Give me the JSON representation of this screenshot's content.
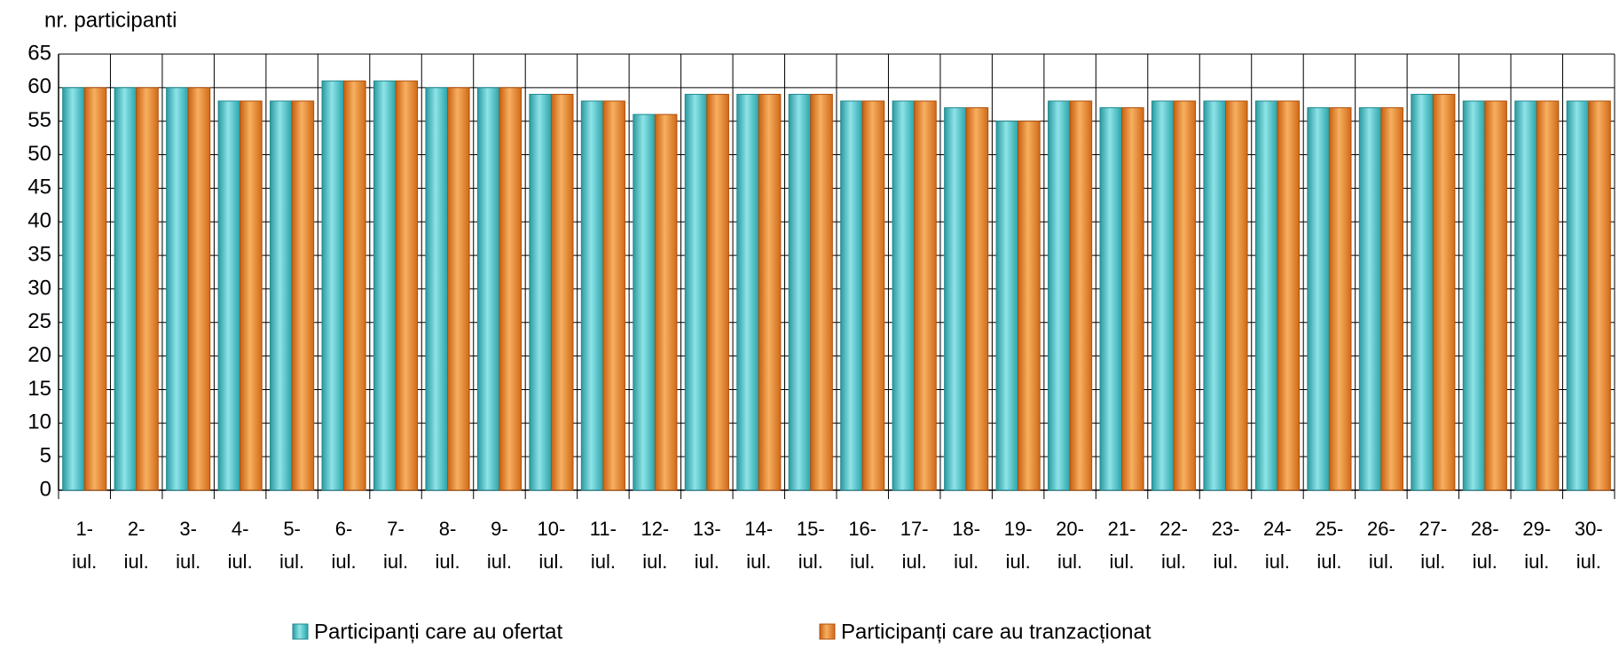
{
  "chart_data": {
    "type": "bar",
    "y_label": "nr. participanti",
    "categories": [
      "1-iul.",
      "2-iul.",
      "3-iul.",
      "4-iul.",
      "5-iul.",
      "6-iul.",
      "7-iul.",
      "8-iul.",
      "9-iul.",
      "10-iul.",
      "11-iul.",
      "12-iul.",
      "13-iul.",
      "14-iul.",
      "15-iul.",
      "16-iul.",
      "17-iul.",
      "18-iul.",
      "19-iul.",
      "20-iul.",
      "21-iul.",
      "22-iul.",
      "23-iul.",
      "24-iul.",
      "25-iul.",
      "26-iul.",
      "27-iul.",
      "28-iul.",
      "29-iul.",
      "30-iul."
    ],
    "series": [
      {
        "name": "Participanți care au ofertat",
        "color": "#3cbcc2",
        "values": [
          60,
          60,
          60,
          58,
          58,
          61,
          61,
          60,
          60,
          59,
          58,
          56,
          59,
          59,
          59,
          58,
          58,
          57,
          55,
          58,
          57,
          58,
          58,
          58,
          57,
          57,
          59,
          58,
          58,
          58
        ]
      },
      {
        "name": "Participanți care au tranzacționat",
        "color": "#ea8a2c",
        "values": [
          60,
          60,
          60,
          58,
          58,
          61,
          61,
          60,
          60,
          59,
          58,
          56,
          59,
          59,
          59,
          58,
          58,
          57,
          55,
          58,
          57,
          58,
          58,
          58,
          57,
          57,
          59,
          58,
          58,
          58
        ]
      }
    ],
    "ylim": [
      0,
      65
    ],
    "yticks": [
      0,
      5,
      10,
      15,
      20,
      25,
      30,
      35,
      40,
      45,
      50,
      55,
      60,
      65
    ],
    "grid": true,
    "legend": "bottom"
  }
}
